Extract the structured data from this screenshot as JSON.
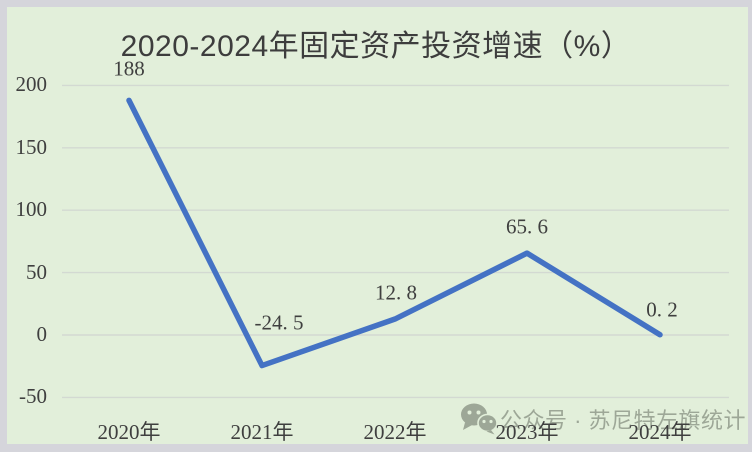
{
  "frame": {
    "outer_color": "#d5d5db",
    "panel_color": "#e2efda"
  },
  "chart_data": {
    "type": "line",
    "title": "2020-2024年固定资产投资增速（%）",
    "categories": [
      "2020年",
      "2021年",
      "2022年",
      "2023年",
      "2024年"
    ],
    "values": [
      188,
      -24.5,
      12.8,
      65.6,
      0.2
    ],
    "point_labels": [
      "188",
      "-24. 5",
      "12. 8",
      "65. 6",
      "0. 2"
    ],
    "xlabel": "",
    "ylabel": "",
    "ylim": [
      -50,
      200
    ],
    "yticks": [
      200,
      150,
      100,
      50,
      0,
      -50
    ],
    "ytick_labels": [
      "200",
      "150",
      "100",
      "50",
      "0",
      "-50"
    ],
    "grid": true,
    "legend": "none",
    "line_color": "#4472c4",
    "gridline_color": "#d3d9d2",
    "text_color": "#3f3f3f",
    "title_color": "#3d3d3d"
  },
  "watermark": {
    "icon": "wechat-icon",
    "text": "公众号 · 苏尼特左旗统计",
    "color": "#9aa494"
  }
}
